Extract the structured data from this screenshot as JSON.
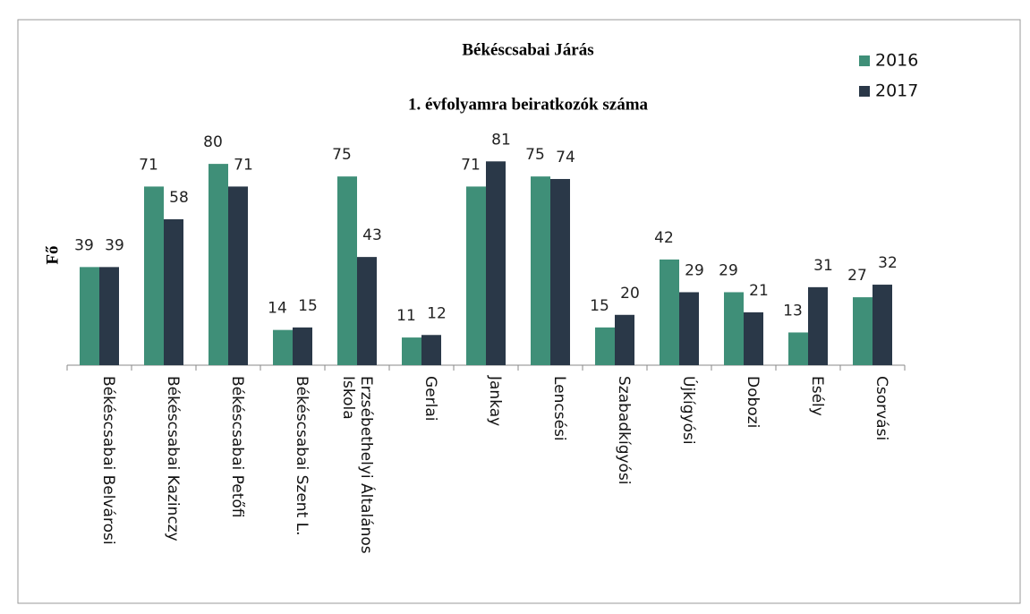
{
  "chart_data": {
    "type": "bar",
    "title": "Békéscsabai Járás",
    "subtitle": "1. évfolyamra beiratkozók száma",
    "y_label": "Fő",
    "categories": [
      "Békéscsabai Belvárosi",
      "Békéscsabai Kazinczy",
      "Békéscsabai Petőfi",
      "Békéscsabai Szent L.",
      "Erzsébethelyi Általános Iskola",
      "Gerlai",
      "Jankay",
      "Lencsési",
      "Szabadkígyósi",
      "Újkígyósi",
      "Dobozi",
      "Esély",
      "Csorvási"
    ],
    "series": [
      {
        "name": "2016",
        "color": "#3f8f78",
        "values": [
          39,
          71,
          80,
          14,
          75,
          11,
          71,
          75,
          15,
          42,
          29,
          13,
          27
        ]
      },
      {
        "name": "2017",
        "color": "#2a3848",
        "values": [
          39,
          58,
          71,
          15,
          43,
          12,
          81,
          74,
          20,
          29,
          21,
          31,
          32
        ]
      }
    ],
    "ylim": [
      0,
      90
    ],
    "legend": "top-right"
  }
}
